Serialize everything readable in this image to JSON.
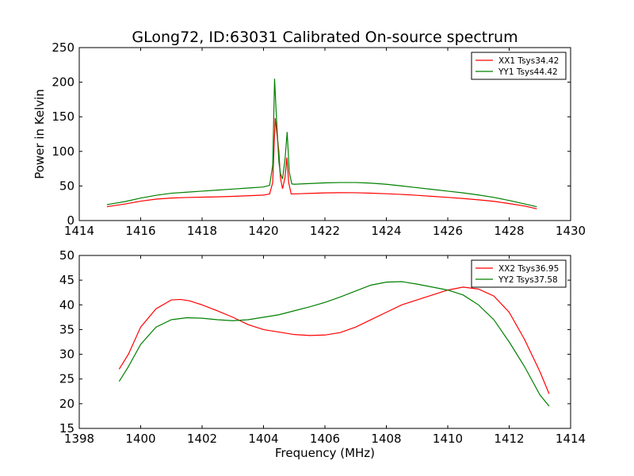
{
  "title": "GLong72, ID:63031 Calibrated On-source spectrum",
  "chart_data": [
    {
      "type": "line",
      "xlabel": "",
      "ylabel": "Power in Kelvin",
      "xlim": [
        1414,
        1430
      ],
      "ylim": [
        0,
        250
      ],
      "xticks": [
        1414,
        1416,
        1418,
        1420,
        1422,
        1424,
        1426,
        1428,
        1430
      ],
      "yticks": [
        0,
        50,
        100,
        150,
        200,
        250
      ],
      "grid": false,
      "legend_position": "top-right",
      "series": [
        {
          "name": "XX1 Tsys34.42",
          "color": "#ff0000",
          "points": [
            [
              1414.9,
              20
            ],
            [
              1415.5,
              24
            ],
            [
              1416,
              28
            ],
            [
              1416.5,
              31
            ],
            [
              1417,
              32.5
            ],
            [
              1417.5,
              33.3
            ],
            [
              1418,
              33.8
            ],
            [
              1418.5,
              34.3
            ],
            [
              1419,
              35
            ],
            [
              1419.5,
              35.8
            ],
            [
              1420,
              36.8
            ],
            [
              1420.2,
              38.5
            ],
            [
              1420.3,
              55
            ],
            [
              1420.38,
              148
            ],
            [
              1420.45,
              120
            ],
            [
              1420.5,
              100
            ],
            [
              1420.55,
              62
            ],
            [
              1420.62,
              46
            ],
            [
              1420.7,
              62
            ],
            [
              1420.76,
              91
            ],
            [
              1420.82,
              55
            ],
            [
              1420.9,
              38.5
            ],
            [
              1421,
              38.5
            ],
            [
              1421.5,
              39.3
            ],
            [
              1422,
              40
            ],
            [
              1422.5,
              40.3
            ],
            [
              1423,
              40.2
            ],
            [
              1423.5,
              39.6
            ],
            [
              1424,
              38.8
            ],
            [
              1424.5,
              37.8
            ],
            [
              1425,
              36.5
            ],
            [
              1425.5,
              35
            ],
            [
              1426,
              33.5
            ],
            [
              1426.5,
              31.8
            ],
            [
              1427,
              30
            ],
            [
              1427.5,
              27.8
            ],
            [
              1428,
              24.5
            ],
            [
              1428.5,
              21
            ],
            [
              1428.9,
              17
            ]
          ]
        },
        {
          "name": "YY1 Tsys44.42",
          "color": "#008000",
          "points": [
            [
              1414.9,
              23
            ],
            [
              1415.5,
              27.5
            ],
            [
              1416,
              32.5
            ],
            [
              1416.5,
              36.5
            ],
            [
              1417,
              39.5
            ],
            [
              1417.5,
              41
            ],
            [
              1418,
              42.5
            ],
            [
              1418.5,
              44
            ],
            [
              1419,
              45.5
            ],
            [
              1419.5,
              47
            ],
            [
              1420,
              48.5
            ],
            [
              1420.2,
              51
            ],
            [
              1420.3,
              80
            ],
            [
              1420.36,
              205
            ],
            [
              1420.42,
              150
            ],
            [
              1420.5,
              85
            ],
            [
              1420.55,
              68
            ],
            [
              1420.62,
              60
            ],
            [
              1420.7,
              88
            ],
            [
              1420.77,
              128
            ],
            [
              1420.84,
              70
            ],
            [
              1420.92,
              53
            ],
            [
              1421,
              52.5
            ],
            [
              1421.5,
              53.5
            ],
            [
              1422,
              54.5
            ],
            [
              1422.5,
              55
            ],
            [
              1423,
              55
            ],
            [
              1423.5,
              54
            ],
            [
              1424,
              52.5
            ],
            [
              1424.5,
              50
            ],
            [
              1425,
              47.5
            ],
            [
              1425.5,
              45
            ],
            [
              1426,
              42.5
            ],
            [
              1426.5,
              40
            ],
            [
              1427,
              37
            ],
            [
              1427.5,
              33.5
            ],
            [
              1428,
              29
            ],
            [
              1428.5,
              24
            ],
            [
              1428.9,
              20
            ]
          ]
        }
      ]
    },
    {
      "type": "line",
      "xlabel": "Frequency (MHz)",
      "ylabel": "",
      "xlim": [
        1398,
        1414
      ],
      "ylim": [
        15,
        50
      ],
      "xticks": [
        1398,
        1400,
        1402,
        1404,
        1406,
        1408,
        1410,
        1412,
        1414
      ],
      "yticks": [
        15,
        20,
        25,
        30,
        35,
        40,
        45,
        50
      ],
      "grid": false,
      "legend_position": "top-right",
      "series": [
        {
          "name": "XX2 Tsys36.95",
          "color": "#ff0000",
          "points": [
            [
              1399.3,
              27
            ],
            [
              1399.6,
              30
            ],
            [
              1400,
              35.5
            ],
            [
              1400.5,
              39.2
            ],
            [
              1401,
              41
            ],
            [
              1401.3,
              41.1
            ],
            [
              1401.6,
              40.8
            ],
            [
              1402,
              40
            ],
            [
              1402.5,
              38.8
            ],
            [
              1403,
              37.5
            ],
            [
              1403.5,
              36
            ],
            [
              1404,
              35
            ],
            [
              1404.5,
              34.5
            ],
            [
              1405,
              34
            ],
            [
              1405.5,
              33.8
            ],
            [
              1406,
              33.9
            ],
            [
              1406.5,
              34.4
            ],
            [
              1407,
              35.5
            ],
            [
              1407.5,
              37
            ],
            [
              1408,
              38.5
            ],
            [
              1408.5,
              40
            ],
            [
              1409,
              41
            ],
            [
              1409.5,
              42
            ],
            [
              1410,
              43
            ],
            [
              1410.5,
              43.6
            ],
            [
              1411,
              43.2
            ],
            [
              1411.5,
              41.8
            ],
            [
              1412,
              38.5
            ],
            [
              1412.5,
              33
            ],
            [
              1413,
              26.5
            ],
            [
              1413.3,
              22
            ]
          ]
        },
        {
          "name": "YY2 Tsys37.58",
          "color": "#008000",
          "points": [
            [
              1399.3,
              24.5
            ],
            [
              1399.6,
              27.5
            ],
            [
              1400,
              32
            ],
            [
              1400.5,
              35.5
            ],
            [
              1401,
              37
            ],
            [
              1401.5,
              37.4
            ],
            [
              1402,
              37.3
            ],
            [
              1402.5,
              37
            ],
            [
              1403,
              36.8
            ],
            [
              1403.5,
              37
            ],
            [
              1404,
              37.5
            ],
            [
              1404.5,
              38
            ],
            [
              1405,
              38.8
            ],
            [
              1405.5,
              39.6
            ],
            [
              1406,
              40.5
            ],
            [
              1406.5,
              41.6
            ],
            [
              1407,
              42.8
            ],
            [
              1407.5,
              44
            ],
            [
              1408,
              44.6
            ],
            [
              1408.5,
              44.7
            ],
            [
              1409,
              44.2
            ],
            [
              1409.5,
              43.6
            ],
            [
              1410,
              43
            ],
            [
              1410.5,
              42
            ],
            [
              1411,
              40
            ],
            [
              1411.5,
              37
            ],
            [
              1412,
              32.5
            ],
            [
              1412.5,
              27.5
            ],
            [
              1413,
              21.8
            ],
            [
              1413.3,
              19.5
            ]
          ]
        }
      ]
    }
  ]
}
